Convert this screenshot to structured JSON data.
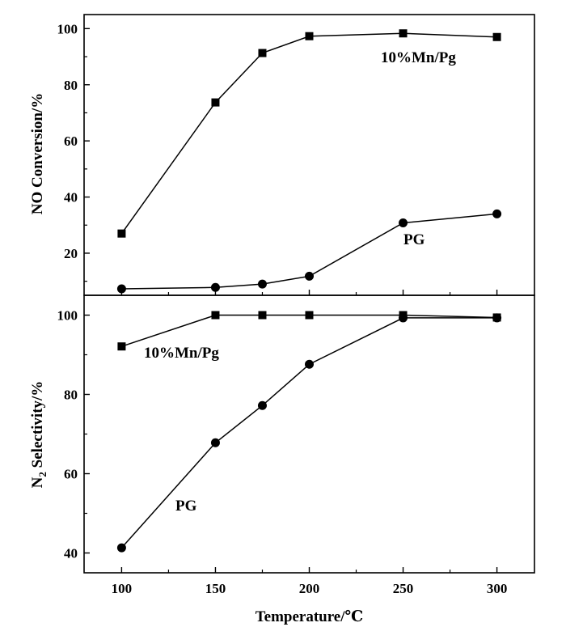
{
  "chart_data": [
    {
      "type": "line",
      "panel": "top",
      "ylabel": "NO Conversion/%",
      "xlabel": "",
      "xlim": [
        80,
        320
      ],
      "ylim": [
        5,
        105
      ],
      "x_ticks": [
        100,
        150,
        200,
        250,
        300
      ],
      "y_ticks": [
        20,
        40,
        60,
        80,
        100
      ],
      "series": [
        {
          "name": "10%Mn/Pg",
          "marker": "square",
          "x": [
            100,
            150,
            175,
            200,
            250,
            300
          ],
          "y": [
            27,
            73.7,
            91.3,
            97.3,
            98.3,
            97.0
          ]
        },
        {
          "name": "PG",
          "marker": "circle",
          "x": [
            100,
            150,
            175,
            200,
            250,
            300
          ],
          "y": [
            7.3,
            7.8,
            9.0,
            11.8,
            30.8,
            34.0
          ]
        }
      ]
    },
    {
      "type": "line",
      "panel": "bottom",
      "ylabel_main": "N",
      "ylabel_sub": "2",
      "ylabel_rest": " Selectivity/%",
      "xlabel": "Temperature/℃",
      "xlim": [
        80,
        320
      ],
      "ylim": [
        35,
        105
      ],
      "x_ticks": [
        100,
        150,
        200,
        250,
        300
      ],
      "y_ticks": [
        40,
        60,
        80,
        100
      ],
      "series": [
        {
          "name": "10%Mn/Pg",
          "marker": "square",
          "x": [
            100,
            150,
            175,
            200,
            250,
            300
          ],
          "y": [
            92.1,
            100,
            100,
            100,
            100,
            99.4
          ]
        },
        {
          "name": "PG",
          "marker": "circle",
          "x": [
            100,
            150,
            175,
            200,
            250,
            300
          ],
          "y": [
            41.3,
            67.8,
            77.2,
            87.6,
            99.3,
            99.3
          ]
        }
      ]
    }
  ],
  "colors": {
    "line": "#000000",
    "background": "#ffffff"
  }
}
